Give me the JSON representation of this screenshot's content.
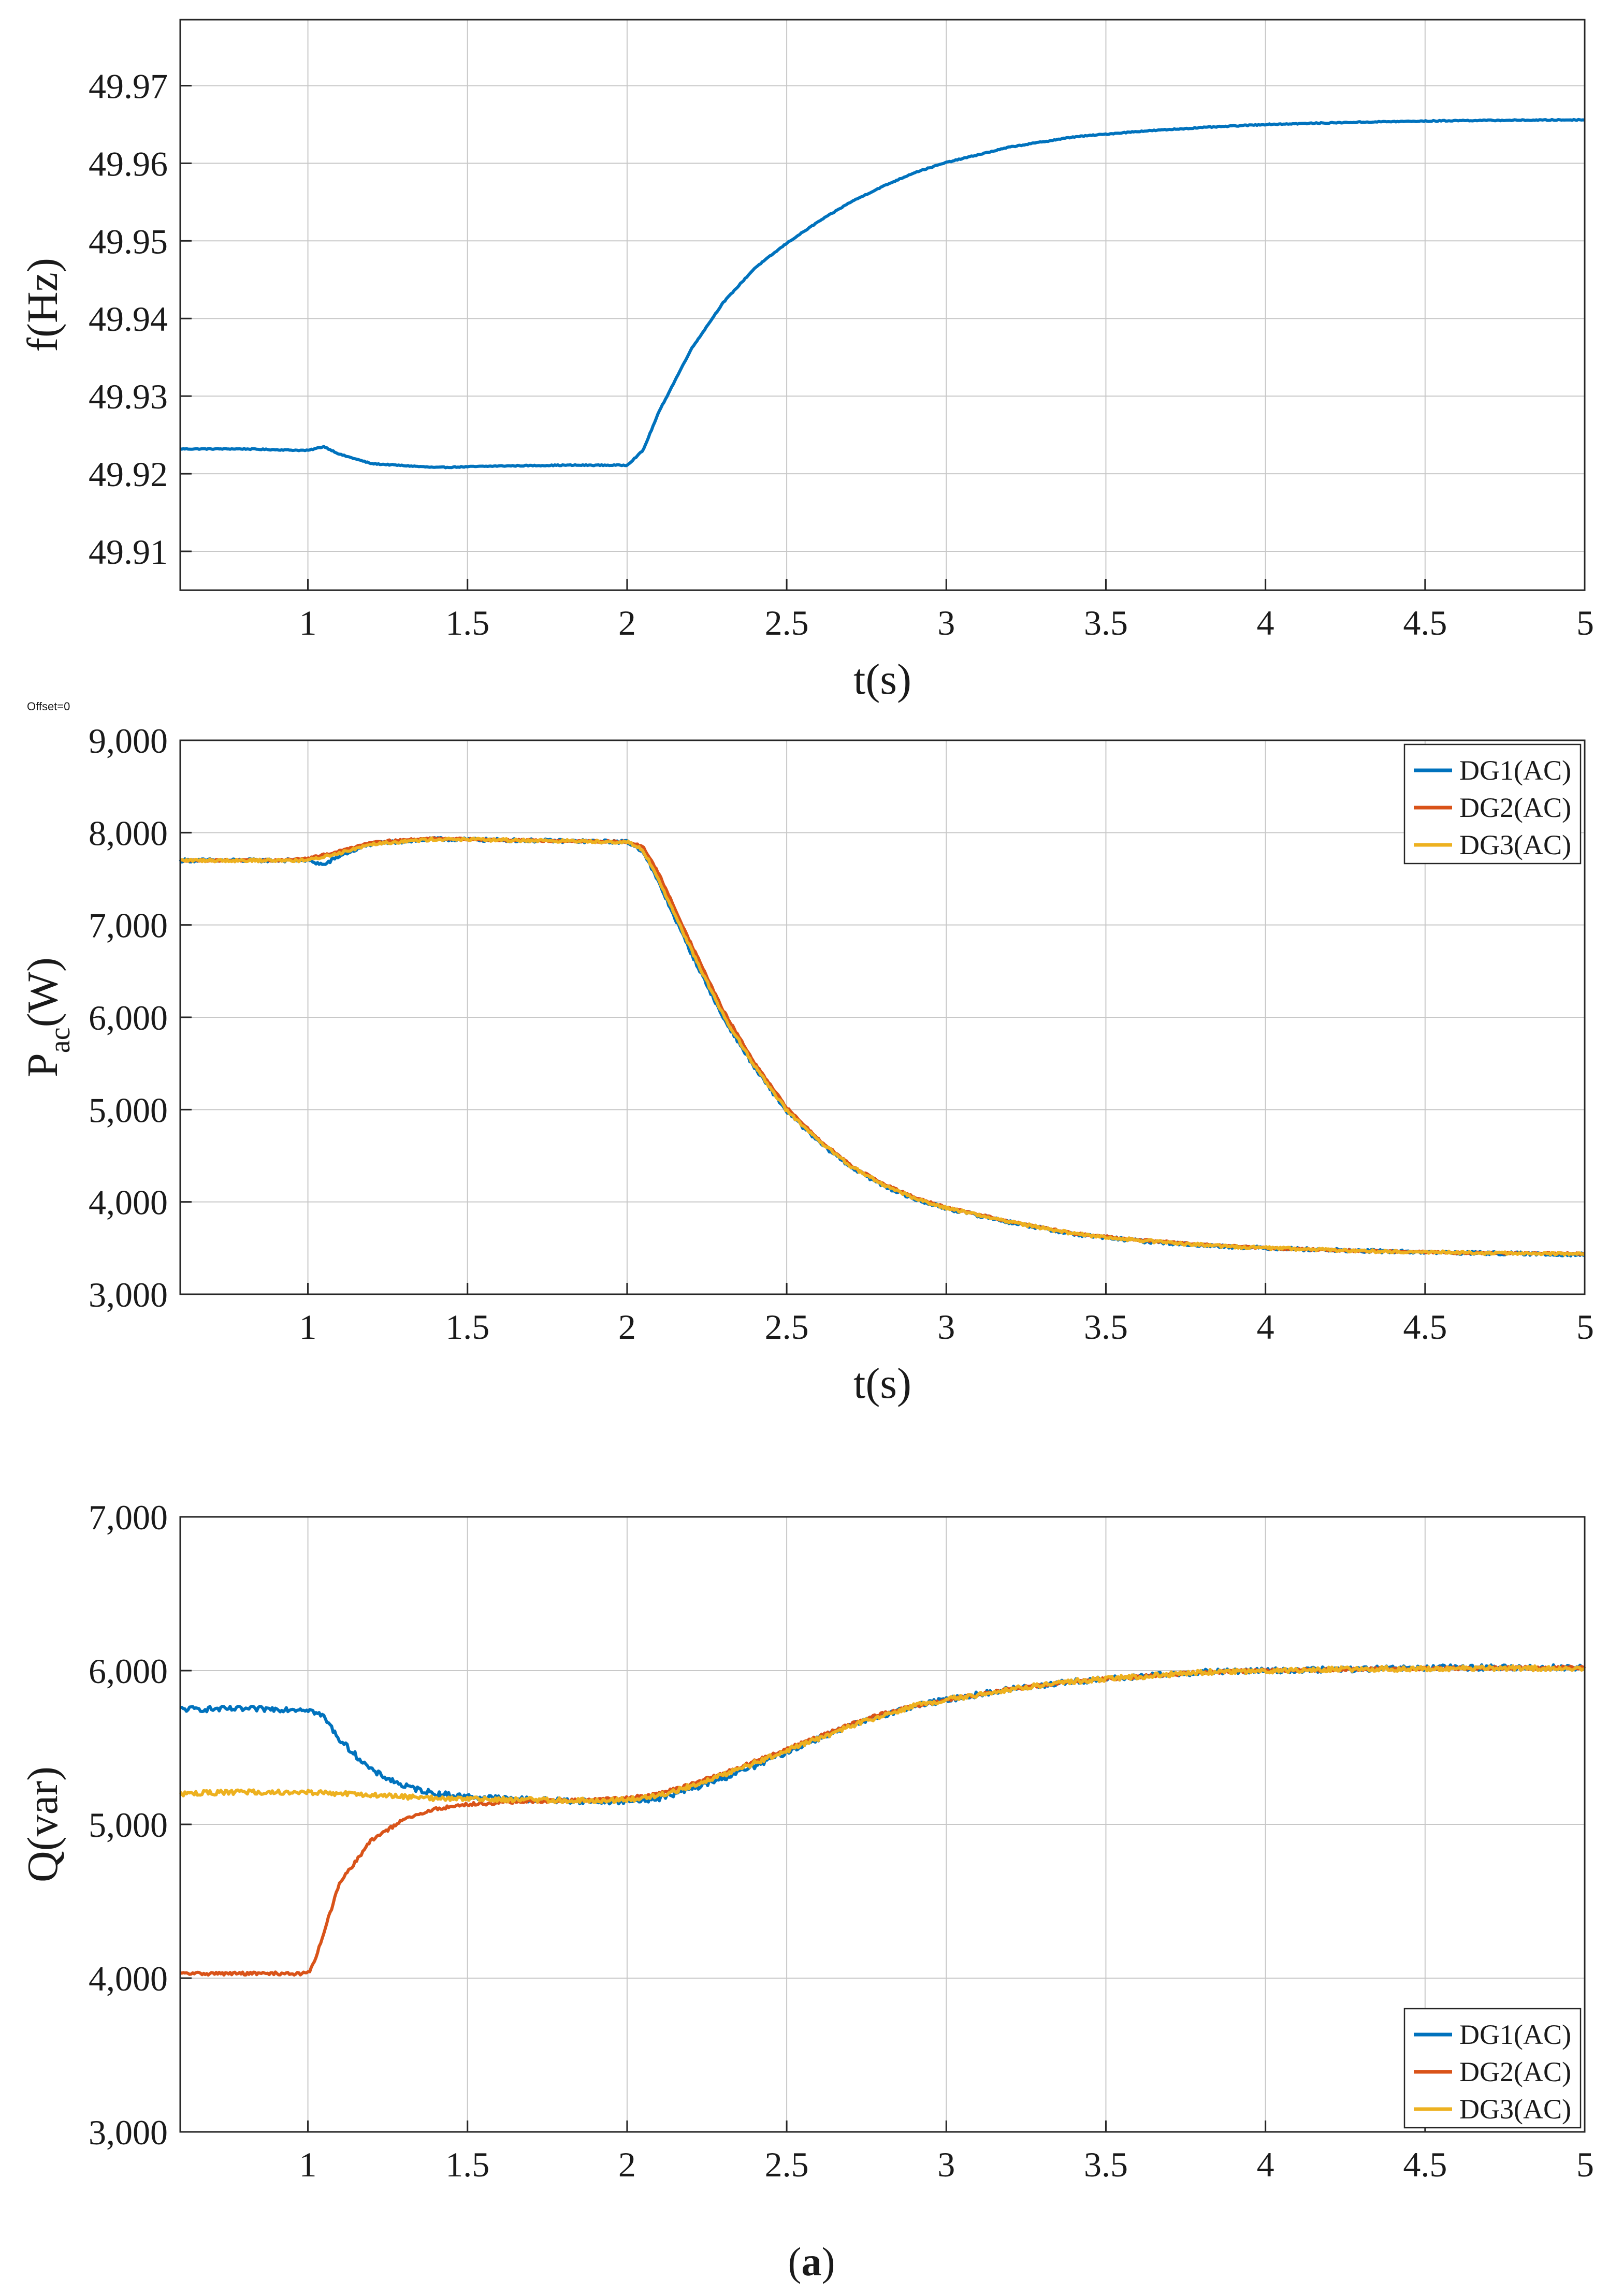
{
  "figure_caption_open": "(",
  "figure_caption_letter": "a",
  "figure_caption_close": ")",
  "offset_note": "Offset=0",
  "colors": {
    "DG1": "#0072BD",
    "DG2": "#D95319",
    "DG3": "#EDB120",
    "freq": "#0072BD"
  },
  "chart_data": [
    {
      "id": "freq",
      "type": "line",
      "title": "",
      "xlabel": "t(s)",
      "ylabel": "f(Hz)",
      "xlim": [
        0.6,
        5
      ],
      "ylim": [
        49.905,
        49.9785
      ],
      "xticks": [
        1,
        1.5,
        2,
        2.5,
        3,
        3.5,
        4,
        4.5,
        5
      ],
      "xticklabels": [
        "1",
        "1.5",
        "2",
        "2.5",
        "3",
        "3.5",
        "4",
        "4.5",
        "5"
      ],
      "yticks": [
        49.91,
        49.92,
        49.93,
        49.94,
        49.95,
        49.96,
        49.97
      ],
      "yticklabels": [
        "49.91",
        "49.92",
        "49.93",
        "49.94",
        "49.95",
        "49.96",
        "49.97"
      ],
      "grid": true,
      "series": [
        {
          "name": "f",
          "color_key": "freq",
          "noise": 6e-05,
          "points": [
            [
              0.6,
              49.9232
            ],
            [
              0.8,
              49.9232
            ],
            [
              1.0,
              49.923
            ],
            [
              1.05,
              49.9235
            ],
            [
              1.1,
              49.9225
            ],
            [
              1.2,
              49.9213
            ],
            [
              1.4,
              49.9208
            ],
            [
              1.6,
              49.921
            ],
            [
              1.8,
              49.9211
            ],
            [
              2.0,
              49.9211
            ],
            [
              2.05,
              49.923
            ],
            [
              2.1,
              49.928
            ],
            [
              2.2,
              49.936
            ],
            [
              2.3,
              49.942
            ],
            [
              2.4,
              49.9465
            ],
            [
              2.5,
              49.9497
            ],
            [
              2.6,
              49.9525
            ],
            [
              2.7,
              49.955
            ],
            [
              2.8,
              49.957
            ],
            [
              2.9,
              49.9588
            ],
            [
              3.0,
              49.9601
            ],
            [
              3.2,
              49.9621
            ],
            [
              3.4,
              49.9634
            ],
            [
              3.6,
              49.9641
            ],
            [
              3.8,
              49.9646
            ],
            [
              4.0,
              49.965
            ],
            [
              4.3,
              49.9653
            ],
            [
              4.6,
              49.9655
            ],
            [
              5.0,
              49.9656
            ]
          ]
        }
      ],
      "legend": null
    },
    {
      "id": "pac",
      "type": "line",
      "title": "",
      "xlabel": "t(s)",
      "ylabel": "P",
      "ylabel_sub": "ac",
      "ylabel_unit": "(W)",
      "xlim": [
        0.6,
        5
      ],
      "ylim": [
        3000,
        9000
      ],
      "xticks": [
        1,
        1.5,
        2,
        2.5,
        3,
        3.5,
        4,
        4.5,
        5
      ],
      "xticklabels": [
        "1",
        "1.5",
        "2",
        "2.5",
        "3",
        "3.5",
        "4",
        "4.5",
        "5"
      ],
      "yticks": [
        3000,
        4000,
        5000,
        6000,
        7000,
        8000,
        9000
      ],
      "yticklabels": [
        "3,000",
        "4,000",
        "5,000",
        "6,000",
        "7,000",
        "8,000",
        "9,000"
      ],
      "grid": true,
      "legend_position": "top-right",
      "series": [
        {
          "name": "DG1(AC)",
          "color_key": "DG1",
          "noise": 18,
          "points": [
            [
              0.6,
              7700
            ],
            [
              0.9,
              7700
            ],
            [
              1.0,
              7700
            ],
            [
              1.05,
              7650
            ],
            [
              1.1,
              7750
            ],
            [
              1.2,
              7880
            ],
            [
              1.4,
              7930
            ],
            [
              1.6,
              7920
            ],
            [
              1.8,
              7910
            ],
            [
              2.0,
              7900
            ],
            [
              2.05,
              7800
            ],
            [
              2.1,
              7450
            ],
            [
              2.2,
              6700
            ],
            [
              2.3,
              6000
            ],
            [
              2.4,
              5450
            ],
            [
              2.5,
              4980
            ],
            [
              2.6,
              4650
            ],
            [
              2.7,
              4380
            ],
            [
              2.8,
              4180
            ],
            [
              2.9,
              4030
            ],
            [
              3.0,
              3930
            ],
            [
              3.2,
              3780
            ],
            [
              3.4,
              3650
            ],
            [
              3.6,
              3580
            ],
            [
              3.8,
              3530
            ],
            [
              4.0,
              3500
            ],
            [
              4.3,
              3470
            ],
            [
              4.6,
              3450
            ],
            [
              5.0,
              3430
            ]
          ]
        },
        {
          "name": "DG2(AC)",
          "color_key": "DG2",
          "noise": 10,
          "points": [
            [
              0.6,
              7700
            ],
            [
              0.9,
              7700
            ],
            [
              1.0,
              7720
            ],
            [
              1.1,
              7800
            ],
            [
              1.2,
              7900
            ],
            [
              1.4,
              7940
            ],
            [
              1.6,
              7920
            ],
            [
              1.8,
              7910
            ],
            [
              2.0,
              7900
            ],
            [
              2.05,
              7850
            ],
            [
              2.1,
              7550
            ],
            [
              2.2,
              6800
            ],
            [
              2.3,
              6080
            ],
            [
              2.4,
              5500
            ],
            [
              2.5,
              5020
            ],
            [
              2.6,
              4680
            ],
            [
              2.7,
              4400
            ],
            [
              2.8,
              4200
            ],
            [
              2.9,
              4050
            ],
            [
              3.0,
              3940
            ],
            [
              3.2,
              3790
            ],
            [
              3.4,
              3660
            ],
            [
              3.6,
              3590
            ],
            [
              3.8,
              3540
            ],
            [
              4.0,
              3500
            ],
            [
              4.3,
              3470
            ],
            [
              4.6,
              3450
            ],
            [
              5.0,
              3440
            ]
          ]
        },
        {
          "name": "DG3(AC)",
          "color_key": "DG3",
          "noise": 16,
          "points": [
            [
              0.6,
              7700
            ],
            [
              0.9,
              7700
            ],
            [
              1.0,
              7700
            ],
            [
              1.1,
              7780
            ],
            [
              1.2,
              7880
            ],
            [
              1.4,
              7930
            ],
            [
              1.6,
              7920
            ],
            [
              1.8,
              7910
            ],
            [
              2.0,
              7900
            ],
            [
              2.05,
              7810
            ],
            [
              2.1,
              7480
            ],
            [
              2.2,
              6740
            ],
            [
              2.3,
              6030
            ],
            [
              2.4,
              5470
            ],
            [
              2.5,
              4990
            ],
            [
              2.6,
              4660
            ],
            [
              2.7,
              4390
            ],
            [
              2.8,
              4190
            ],
            [
              2.9,
              4040
            ],
            [
              3.0,
              3935
            ],
            [
              3.2,
              3785
            ],
            [
              3.4,
              3655
            ],
            [
              3.6,
              3585
            ],
            [
              3.8,
              3535
            ],
            [
              4.0,
              3500
            ],
            [
              4.3,
              3470
            ],
            [
              4.6,
              3450
            ],
            [
              5.0,
              3435
            ]
          ]
        }
      ],
      "legend": [
        "DG1(AC)",
        "DG2(AC)",
        "DG3(AC)"
      ]
    },
    {
      "id": "q",
      "type": "line",
      "title": "",
      "xlabel": "",
      "ylabel": "Q(var)",
      "xlim": [
        0.6,
        5
      ],
      "ylim": [
        3000,
        7000
      ],
      "xticks": [
        1,
        1.5,
        2,
        2.5,
        3,
        3.5,
        4,
        4.5,
        5
      ],
      "xticklabels": [
        "1",
        "1.5",
        "2",
        "2.5",
        "3",
        "3.5",
        "4",
        "4.5",
        "5"
      ],
      "yticks": [
        3000,
        4000,
        5000,
        6000,
        7000
      ],
      "yticklabels": [
        "3,000",
        "4,000",
        "5,000",
        "6,000",
        "7,000"
      ],
      "grid": true,
      "legend_position": "bottom-right",
      "series": [
        {
          "name": "DG1(AC)",
          "color_key": "DG1",
          "noise": 18,
          "points": [
            [
              0.6,
              5750
            ],
            [
              0.8,
              5750
            ],
            [
              1.0,
              5750
            ],
            [
              1.05,
              5700
            ],
            [
              1.1,
              5550
            ],
            [
              1.2,
              5350
            ],
            [
              1.3,
              5250
            ],
            [
              1.4,
              5200
            ],
            [
              1.5,
              5180
            ],
            [
              1.7,
              5160
            ],
            [
              1.9,
              5150
            ],
            [
              2.0,
              5150
            ],
            [
              2.1,
              5170
            ],
            [
              2.2,
              5230
            ],
            [
              2.3,
              5300
            ],
            [
              2.4,
              5380
            ],
            [
              2.5,
              5470
            ],
            [
              2.6,
              5560
            ],
            [
              2.7,
              5640
            ],
            [
              2.8,
              5710
            ],
            [
              2.9,
              5770
            ],
            [
              3.0,
              5810
            ],
            [
              3.2,
              5880
            ],
            [
              3.4,
              5930
            ],
            [
              3.6,
              5960
            ],
            [
              3.8,
              5990
            ],
            [
              4.0,
              6000
            ],
            [
              4.3,
              6010
            ],
            [
              4.6,
              6020
            ],
            [
              5.0,
              6020
            ]
          ]
        },
        {
          "name": "DG2(AC)",
          "color_key": "DG2",
          "noise": 10,
          "points": [
            [
              0.6,
              4030
            ],
            [
              0.8,
              4030
            ],
            [
              1.0,
              4030
            ],
            [
              1.02,
              4100
            ],
            [
              1.05,
              4300
            ],
            [
              1.1,
              4620
            ],
            [
              1.2,
              4900
            ],
            [
              1.3,
              5030
            ],
            [
              1.4,
              5100
            ],
            [
              1.5,
              5130
            ],
            [
              1.7,
              5150
            ],
            [
              1.9,
              5160
            ],
            [
              2.0,
              5170
            ],
            [
              2.1,
              5200
            ],
            [
              2.2,
              5260
            ],
            [
              2.3,
              5330
            ],
            [
              2.4,
              5410
            ],
            [
              2.5,
              5490
            ],
            [
              2.6,
              5570
            ],
            [
              2.7,
              5650
            ],
            [
              2.8,
              5720
            ],
            [
              2.9,
              5770
            ],
            [
              3.0,
              5810
            ],
            [
              3.2,
              5880
            ],
            [
              3.4,
              5930
            ],
            [
              3.6,
              5960
            ],
            [
              3.8,
              5990
            ],
            [
              4.0,
              6000
            ],
            [
              4.3,
              6010
            ],
            [
              4.6,
              6015
            ],
            [
              5.0,
              6020
            ]
          ]
        },
        {
          "name": "DG3(AC)",
          "color_key": "DG3",
          "noise": 16,
          "points": [
            [
              0.6,
              5200
            ],
            [
              0.8,
              5210
            ],
            [
              1.0,
              5210
            ],
            [
              1.1,
              5200
            ],
            [
              1.2,
              5190
            ],
            [
              1.3,
              5180
            ],
            [
              1.4,
              5170
            ],
            [
              1.5,
              5165
            ],
            [
              1.7,
              5160
            ],
            [
              1.9,
              5155
            ],
            [
              2.0,
              5160
            ],
            [
              2.1,
              5190
            ],
            [
              2.2,
              5250
            ],
            [
              2.3,
              5320
            ],
            [
              2.4,
              5400
            ],
            [
              2.5,
              5480
            ],
            [
              2.6,
              5560
            ],
            [
              2.7,
              5640
            ],
            [
              2.8,
              5710
            ],
            [
              2.9,
              5770
            ],
            [
              3.0,
              5810
            ],
            [
              3.2,
              5880
            ],
            [
              3.4,
              5930
            ],
            [
              3.6,
              5960
            ],
            [
              3.8,
              5990
            ],
            [
              4.0,
              6000
            ],
            [
              4.3,
              6010
            ],
            [
              4.6,
              6015
            ],
            [
              5.0,
              6015
            ]
          ]
        }
      ],
      "legend": [
        "DG1(AC)",
        "DG2(AC)",
        "DG3(AC)"
      ]
    }
  ]
}
